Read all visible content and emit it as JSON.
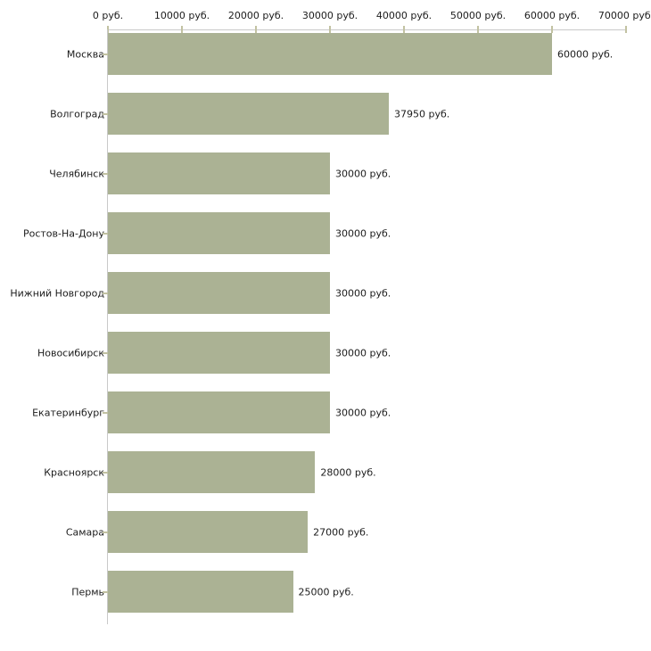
{
  "chart_data": {
    "type": "bar",
    "orientation": "horizontal",
    "categories": [
      "Москва",
      "Волгоград",
      "Челябинск",
      "Ростов-На-Дону",
      "Нижний Новгород",
      "Новосибирск",
      "Екатеринбург",
      "Красноярск",
      "Самара",
      "Пермь"
    ],
    "values": [
      60000,
      37950,
      30000,
      30000,
      30000,
      30000,
      30000,
      28000,
      27000,
      25000
    ],
    "value_labels": [
      "60000 руб.",
      "37950 руб.",
      "30000 руб.",
      "30000 руб.",
      "30000 руб.",
      "30000 руб.",
      "30000 руб.",
      "28000 руб.",
      "27000 руб.",
      "25000 руб."
    ],
    "x_ticks": [
      0,
      10000,
      20000,
      30000,
      40000,
      50000,
      60000,
      70000
    ],
    "x_tick_labels": [
      "0 руб.",
      "10000 руб.",
      "20000 руб.",
      "30000 руб.",
      "40000 руб.",
      "50000 руб.",
      "60000 руб.",
      "70000 руб."
    ],
    "xlim": [
      0,
      70000
    ],
    "xlabel": "",
    "ylabel": "",
    "grid": false,
    "legend": false,
    "colors": {
      "bar": "#abb294",
      "axis_line": "#c9c9c9",
      "tick": "#c2c2a2",
      "text": "#1c1c1c"
    }
  }
}
